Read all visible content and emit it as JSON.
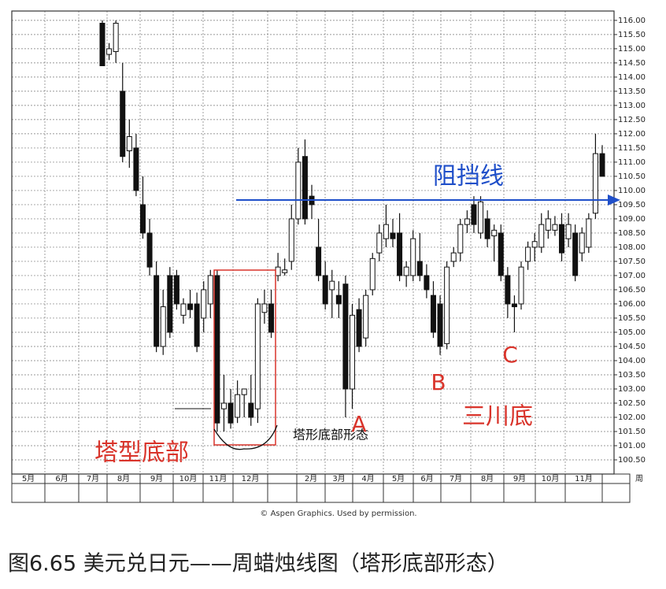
{
  "chart_data": {
    "type": "candlestick",
    "annotation_resistance": "阻挡线",
    "annotation_pattern_left": "塔型底部",
    "annotation_pattern": "塔形底部形态",
    "annotation_a": "A",
    "annotation_b": "B",
    "annotation_c": "C",
    "annotation_triple": "三川底",
    "credit": "© Aspen Graphics. Used by permission.",
    "caption": "图6.65 美元兑日元——周蜡烛线图（塔形底部形态）",
    "x_unit": "周",
    "categories": [
      "5月",
      "6月",
      "7月",
      "8月",
      "9月",
      "10月",
      "11月",
      "12月",
      null,
      "2月",
      "3月",
      "4月",
      "5月",
      "6月",
      "7月",
      "8月",
      "9月",
      "10月",
      "11月"
    ],
    "ylim": [
      100,
      116.33
    ],
    "yticks": [
      {
        "value": 116,
        "label": "116.00"
      },
      {
        "value": 115.5,
        "label": "115.50"
      },
      {
        "value": 115,
        "label": "115.00"
      },
      {
        "value": 114.5,
        "label": "114.50"
      },
      {
        "value": 114,
        "label": "114.00"
      },
      {
        "value": 113.5,
        "label": "113.50"
      },
      {
        "value": 113,
        "label": "113.00"
      },
      {
        "value": 112.5,
        "label": "112.50"
      },
      {
        "value": 112,
        "label": "112.00"
      },
      {
        "value": 111.5,
        "label": "111.50"
      },
      {
        "value": 111,
        "label": "111.00"
      },
      {
        "value": 110.5,
        "label": "110.50"
      },
      {
        "value": 110,
        "label": "110.00"
      },
      {
        "value": 109.5,
        "label": "109.50"
      },
      {
        "value": 109,
        "label": "109.00"
      },
      {
        "value": 108.5,
        "label": "108.50"
      },
      {
        "value": 108,
        "label": "108.00"
      },
      {
        "value": 107.5,
        "label": "107.50"
      },
      {
        "value": 107,
        "label": "107.00"
      },
      {
        "value": 106.5,
        "label": "106.50"
      },
      {
        "value": 106,
        "label": "106.00"
      },
      {
        "value": 105.5,
        "label": "105.50"
      },
      {
        "value": 105,
        "label": "105.00"
      },
      {
        "value": 104.5,
        "label": "104.50"
      },
      {
        "value": 104,
        "label": "104.00"
      },
      {
        "value": 103.5,
        "label": "103.50"
      },
      {
        "value": 103,
        "label": "103.00"
      },
      {
        "value": 102.5,
        "label": "102.50"
      },
      {
        "value": 102,
        "label": "102.00"
      },
      {
        "value": 101.5,
        "label": "101.50"
      },
      {
        "value": 101,
        "label": "101.00"
      },
      {
        "value": 100.5,
        "label": "100.50"
      }
    ],
    "grid": true,
    "up_color": "#ffffff",
    "down_color": "#111111",
    "open": [
      115.9,
      114.8,
      114.9,
      113.5,
      111.4,
      111.5,
      109.5,
      108.5,
      107.0,
      104.5,
      107.0,
      107.0,
      105.6,
      106.0,
      106.0,
      105.5,
      106.0,
      107.0,
      102.3,
      102.5,
      102.0,
      102.8,
      102.5,
      102.3,
      105.7,
      106.0,
      107.0,
      107.1,
      107.5,
      109.0,
      111.2,
      109.8,
      108.0,
      107.0,
      106.5,
      106.3,
      106.7,
      103.0,
      105.8,
      104.8,
      106.5,
      107.8,
      108.3,
      108.5,
      108.5,
      107.0,
      107.0,
      107.5,
      107.0,
      106.3,
      106.0,
      104.6,
      107.5,
      107.8,
      108.8,
      109.5,
      108.5,
      109.0,
      108.4,
      108.5,
      107.0,
      106.0,
      106.0,
      107.5,
      108.0,
      108.0,
      108.6,
      108.6,
      108.8,
      108.3,
      108.5,
      107.8,
      108.0,
      109.2,
      111.3
    ],
    "high": [
      116.0,
      115.2,
      116.0,
      114.5,
      112.5,
      112.0,
      110.5,
      109.0,
      107.5,
      106.5,
      107.3,
      107.2,
      106.2,
      106.5,
      106.4,
      106.8,
      107.2,
      107.2,
      103.5,
      103.0,
      103.3,
      103.0,
      103.5,
      106.2,
      106.5,
      106.5,
      107.8,
      107.6,
      109.5,
      111.5,
      111.8,
      110.2,
      109.0,
      107.5,
      107.2,
      106.8,
      107.0,
      106.0,
      106.2,
      106.5,
      107.8,
      108.8,
      109.5,
      109.0,
      109.2,
      107.5,
      108.6,
      108.5,
      107.4,
      106.8,
      106.3,
      107.5,
      108.0,
      109.0,
      109.3,
      109.8,
      109.8,
      109.3,
      108.8,
      108.8,
      107.3,
      106.3,
      107.5,
      108.2,
      108.5,
      109.2,
      109.3,
      109.1,
      109.2,
      109.2,
      108.8,
      108.7,
      109.2,
      112.0,
      111.6
    ],
    "low": [
      114.4,
      114.6,
      114.5,
      111.0,
      110.8,
      109.8,
      108.3,
      107.0,
      104.3,
      104.2,
      104.8,
      105.8,
      105.3,
      105.5,
      104.3,
      105.0,
      105.5,
      101.5,
      101.5,
      101.6,
      101.8,
      102.0,
      101.7,
      101.8,
      105.3,
      104.8,
      106.8,
      107.0,
      107.2,
      108.8,
      108.8,
      109.0,
      106.8,
      105.8,
      105.5,
      105.5,
      102.0,
      102.3,
      104.3,
      104.5,
      106.3,
      107.5,
      108.0,
      108.0,
      106.8,
      106.6,
      106.8,
      106.8,
      106.2,
      104.8,
      104.2,
      104.4,
      107.3,
      107.5,
      108.5,
      108.5,
      108.3,
      108.0,
      107.5,
      106.8,
      105.5,
      105.0,
      105.8,
      107.2,
      107.5,
      107.8,
      108.3,
      108.4,
      107.5,
      108.0,
      106.8,
      107.5,
      107.8,
      109.0,
      110.5
    ],
    "close": [
      114.4,
      115.0,
      115.9,
      111.2,
      111.9,
      110.0,
      108.5,
      107.3,
      104.5,
      105.9,
      105.0,
      106.0,
      106.0,
      105.8,
      104.5,
      106.5,
      107.0,
      101.8,
      102.5,
      101.8,
      102.8,
      103.0,
      102.0,
      106.0,
      106.0,
      105.0,
      107.3,
      107.2,
      109.0,
      111.0,
      109.0,
      109.5,
      107.0,
      106.0,
      106.8,
      106.0,
      103.0,
      105.6,
      104.5,
      106.3,
      107.6,
      108.5,
      108.8,
      108.3,
      107.0,
      107.3,
      108.3,
      107.0,
      106.5,
      105.0,
      104.5,
      107.3,
      107.8,
      108.8,
      109.0,
      108.8,
      109.6,
      108.3,
      108.6,
      107.0,
      106.0,
      105.9,
      107.3,
      108.0,
      108.2,
      108.8,
      109.0,
      108.8,
      107.8,
      108.8,
      107.0,
      108.5,
      109.0,
      111.3,
      110.5
    ]
  }
}
